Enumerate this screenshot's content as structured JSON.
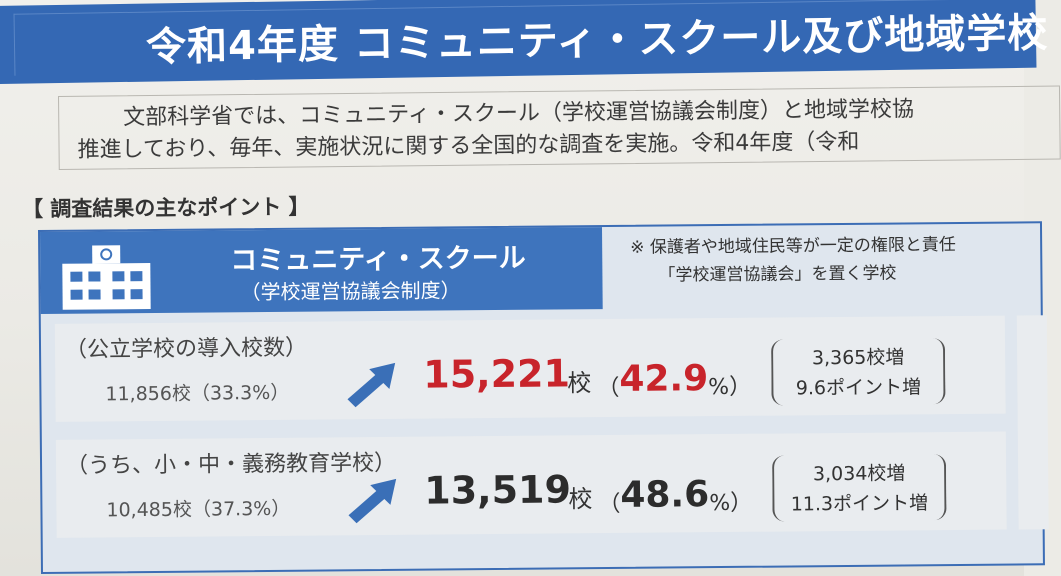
{
  "title": "令和4年度  コミュニティ・スクール及び地域学校",
  "intro": {
    "line1": "文部科学省では、コミュニティ・スクール（学校運営協議会制度）と地域学校協",
    "line2": "推進しており、毎年、実施状況に関する全国的な調査を実施。令和4年度（令和"
  },
  "points_heading": "【 調査結果の主なポイント 】",
  "community_school": {
    "title": "コミュニティ・スクール",
    "subtitle": "（学校運営協議会制度）",
    "icon": "school-building-icon",
    "note_line1": "※ 保護者や地域住民等が一定の権限と責任",
    "note_line2": "「学校運営協議会」を置く学校"
  },
  "rows": [
    {
      "label": "（公立学校の導入校数）",
      "before": "11,856校（33.3%）",
      "value": "15,221",
      "unit": "校",
      "pct_open": "（",
      "pct": "42.9",
      "pct_close": "%）",
      "delta1": "3,365校増",
      "delta2": "9.6ポイント増",
      "value_color": "#c8242b"
    },
    {
      "label": "（うち、小・中・義務教育学校）",
      "before": "10,485校（37.3%）",
      "value": "13,519",
      "unit": "校",
      "pct_open": "（",
      "pct": "48.6",
      "pct_close": "%）",
      "delta1": "3,034校増",
      "delta2": "11.3ポイント増",
      "value_color": "#2c2c2c"
    }
  ],
  "colors": {
    "title_bg": "#3468b4",
    "panel_header": "#3e74bd",
    "highlight": "#c8242b"
  }
}
